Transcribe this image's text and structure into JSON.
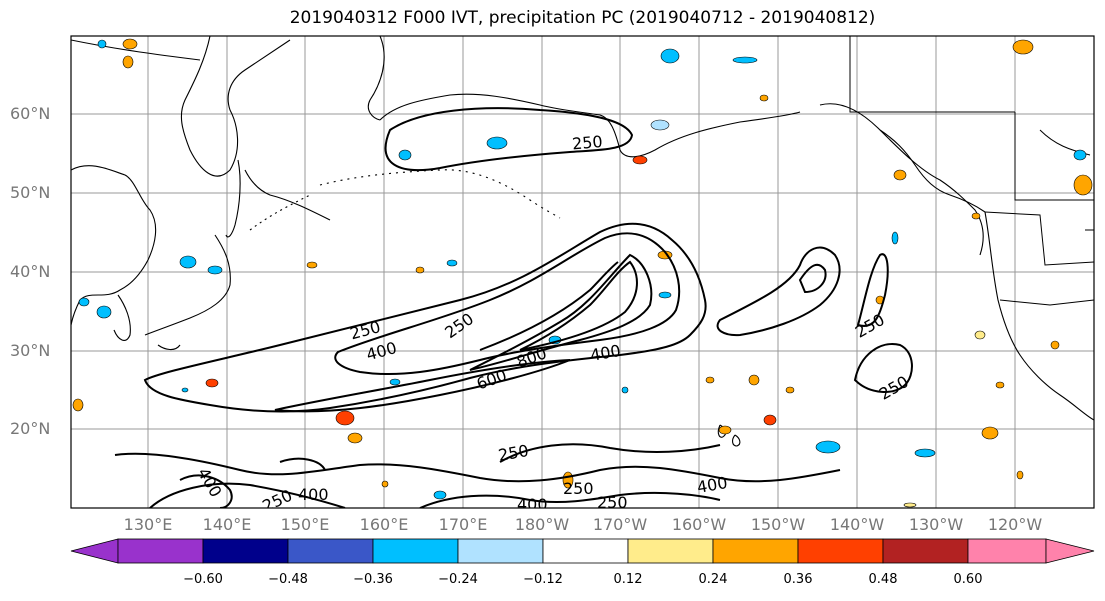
{
  "title": "2019040312 F000 IVT, precipitation PC (2019040712 - 2019040812)",
  "lat_ticks": [
    "60°N",
    "50°N",
    "40°N",
    "30°N",
    "20°N"
  ],
  "lon_ticks": [
    "130°E",
    "140°E",
    "150°E",
    "160°E",
    "170°E",
    "180°W",
    "170°W",
    "160°W",
    "150°W",
    "140°W",
    "130°W",
    "120°W"
  ],
  "colorbar": {
    "colors": [
      "#9932cc",
      "#00008b",
      "#3a57c8",
      "#00bfff",
      "#b0e2ff",
      "#ffffff",
      "#ffec8b",
      "#ffa500",
      "#ff4000",
      "#b22222",
      "#ff82ab"
    ],
    "labels": [
      "−0.60",
      "−0.48",
      "−0.36",
      "−0.24",
      "−0.12",
      "0.12",
      "0.24",
      "0.36",
      "0.48",
      "0.60"
    ]
  },
  "contour_labels": [
    {
      "text": "250"
    },
    {
      "text": "250"
    },
    {
      "text": "250"
    },
    {
      "text": "400"
    },
    {
      "text": "600"
    },
    {
      "text": "800"
    },
    {
      "text": "400"
    },
    {
      "text": "250"
    },
    {
      "text": "250"
    },
    {
      "text": "250"
    },
    {
      "text": "400"
    },
    {
      "text": "250"
    },
    {
      "text": "400"
    },
    {
      "text": "250"
    },
    {
      "text": "400"
    },
    {
      "text": "400"
    },
    {
      "text": "250"
    }
  ]
}
